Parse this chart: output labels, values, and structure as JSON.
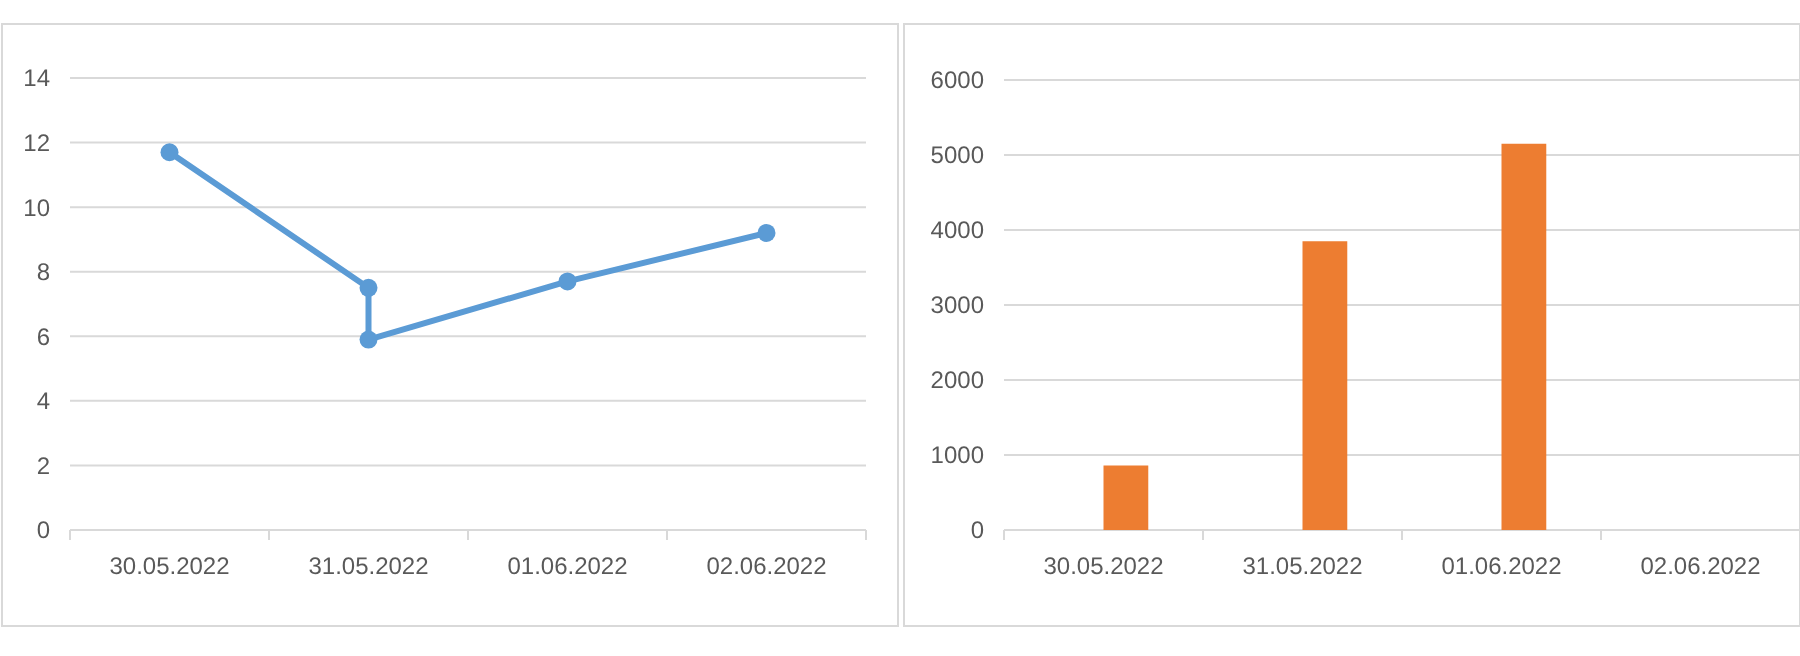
{
  "chart_data": [
    {
      "type": "line",
      "x": [
        "2022-05-30",
        "2022-05-31",
        "2022-05-31",
        "2022-06-01",
        "2022-06-02"
      ],
      "series": [
        {
          "color": "#5b9bd5",
          "values": [
            11.7,
            7.5,
            5.9,
            7.7,
            9.2
          ]
        }
      ],
      "xlim": [
        "2022-05-29T12:00",
        "2022-06-02T12:00"
      ],
      "xticks": [
        {
          "value": "2022-05-29T12:00",
          "label": null
        },
        {
          "value": "2022-05-30",
          "label": "30.05.2022"
        },
        {
          "value": "2022-05-30T12:00",
          "label": null
        },
        {
          "value": "2022-05-31",
          "label": "31.05.2022"
        },
        {
          "value": "2022-05-31T12:00",
          "label": null
        },
        {
          "value": "2022-06-01",
          "label": "01.06.2022"
        },
        {
          "value": "2022-06-01T12:00",
          "label": null
        },
        {
          "value": "2022-06-02",
          "label": "02.06.2022"
        },
        {
          "value": "2022-06-02T12:00",
          "label": null
        }
      ],
      "ylim": [
        0,
        14
      ],
      "yticks": [
        0,
        2,
        4,
        6,
        8,
        10,
        12,
        14
      ],
      "grid": "y",
      "marker": "circle",
      "line_style": "solid"
    },
    {
      "type": "bar",
      "categories": [
        "30.05.2022",
        "31.05.2022",
        "01.06.2022",
        "02.06.2022"
      ],
      "series": [
        {
          "color": "#dde6f0",
          "values": [
            0,
            0,
            0,
            0
          ]
        },
        {
          "color": "#ed7d31",
          "values": [
            860,
            3850,
            5150,
            0
          ]
        }
      ],
      "ylim": [
        0,
        6000
      ],
      "yticks": [
        0,
        1000,
        2000,
        3000,
        4000,
        5000,
        6000
      ],
      "grid": "y"
    }
  ]
}
